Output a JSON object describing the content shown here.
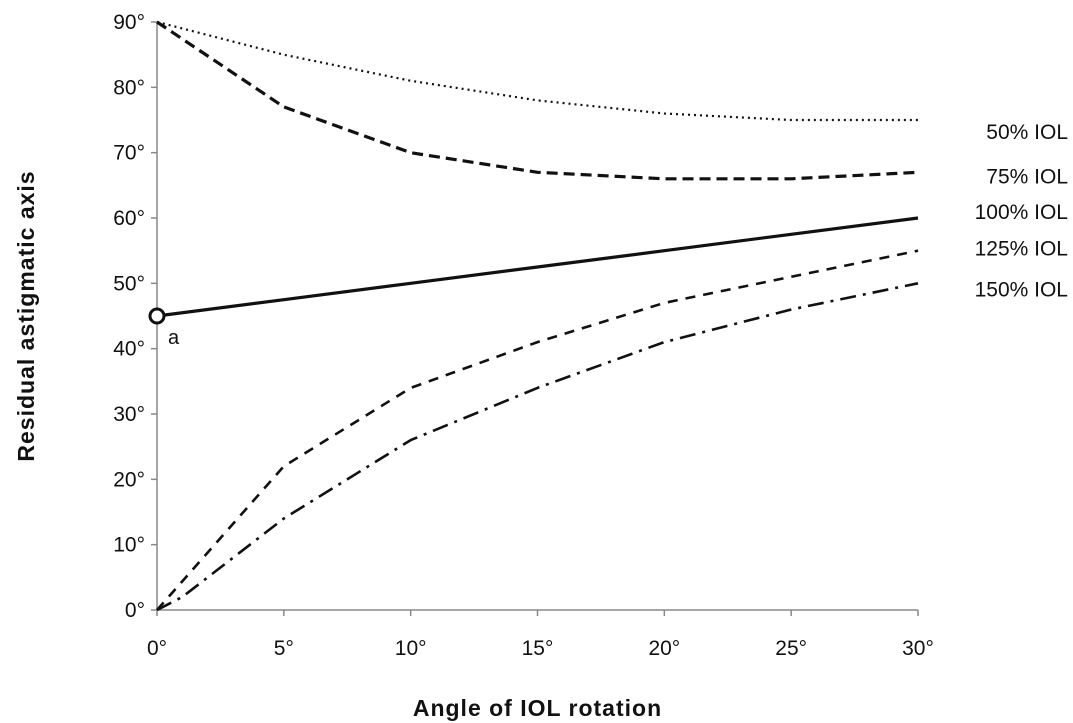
{
  "chart_data": {
    "type": "line",
    "title": "",
    "xlabel": "Angle of IOL rotation",
    "ylabel": "Residual astigmatic axis",
    "xlim": [
      0,
      30
    ],
    "ylim": [
      0,
      90
    ],
    "x_ticks": [
      "0°",
      "5°",
      "10°",
      "15°",
      "20°",
      "25°",
      "30°"
    ],
    "y_ticks": [
      "0°",
      "10°",
      "20°",
      "30°",
      "40°",
      "50°",
      "60°",
      "70°",
      "80°",
      "90°"
    ],
    "grid": false,
    "legend": "direct labels at right end of lines",
    "series": [
      {
        "name": "50% IOL",
        "style": "dotted",
        "x": [
          0,
          5,
          10,
          15,
          20,
          25,
          30
        ],
        "y": [
          90,
          85,
          81,
          78,
          76,
          75,
          75
        ]
      },
      {
        "name": "75% IOL",
        "style": "dashed",
        "x": [
          0,
          5,
          10,
          15,
          20,
          25,
          30
        ],
        "y": [
          90,
          77,
          70,
          67,
          66,
          66,
          67
        ]
      },
      {
        "name": "100% IOL",
        "style": "solid",
        "x": [
          0,
          5,
          10,
          15,
          20,
          25,
          30
        ],
        "y": [
          45,
          47.5,
          50,
          52.5,
          55,
          57.5,
          60
        ]
      },
      {
        "name": "125% IOL",
        "style": "short-dash",
        "x": [
          0,
          5,
          10,
          15,
          20,
          25,
          30
        ],
        "y": [
          0,
          22,
          34,
          41,
          47,
          51,
          55
        ]
      },
      {
        "name": "150% IOL",
        "style": "dash-dot",
        "x": [
          0,
          1,
          5,
          10,
          15,
          20,
          25,
          30
        ],
        "y": [
          0,
          2,
          14,
          26,
          34,
          41,
          46,
          50
        ]
      }
    ],
    "annotations": [
      {
        "text": "a",
        "x": 0,
        "y": 45,
        "marker": "open-circle"
      }
    ]
  }
}
